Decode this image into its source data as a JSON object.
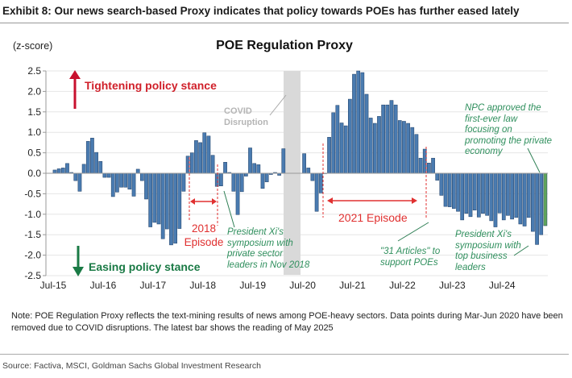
{
  "header": {
    "title": "Exhibit 8: Our news search-based Proxy indicates that policy towards POEs has further eased lately"
  },
  "colors": {
    "bar": "#4a7bb0",
    "bar_latest": "#5fa35b",
    "tightening": "#c8102e",
    "easing": "#1a7a45",
    "covid_band": "#d9d9d9"
  },
  "chart_data": {
    "type": "bar",
    "title": "POE Regulation Proxy",
    "ylabel": "(z-score)",
    "xlabel": "",
    "ylim": [
      -2.5,
      2.5
    ],
    "yticks": [
      "2.5",
      "2.0",
      "1.5",
      "1.0",
      "0.5",
      "0.0",
      "-0.5",
      "-1.0",
      "-1.5",
      "-2.0",
      "-2.5"
    ],
    "ytick_values": [
      2.5,
      2.0,
      1.5,
      1.0,
      0.5,
      0.0,
      -0.5,
      -1.0,
      -1.5,
      -2.0,
      -2.5
    ],
    "xticks": [
      "Jul-15",
      "Jul-16",
      "Jul-17",
      "Jul-18",
      "Jul-19",
      "Jul-20",
      "Jul-21",
      "Jul-22",
      "Jul-23",
      "Jul-24"
    ],
    "x_start": "Jul-2015",
    "x_end": "May-2025",
    "grid": true,
    "series": [
      {
        "name": "POE Regulation Proxy (Jul-15 to Feb-20)",
        "start": "Jul-2015",
        "values": [
          0.08,
          0.11,
          0.13,
          0.24,
          0.02,
          -0.18,
          -0.44,
          0.22,
          0.78,
          0.86,
          0.51,
          0.29,
          -0.1,
          -0.1,
          -0.57,
          -0.46,
          -0.34,
          -0.34,
          -0.39,
          -0.56,
          0.1,
          -0.18,
          -0.63,
          -1.31,
          -1.2,
          -1.24,
          -1.6,
          -1.36,
          -1.75,
          -1.71,
          -1.35,
          -0.44,
          0.42,
          0.5,
          0.8,
          0.75,
          0.99,
          0.91,
          0.44,
          -0.32,
          -0.31,
          0.27,
          0.02,
          -0.44,
          -1.01,
          -0.45,
          -0.07,
          0.62,
          0.24,
          0.21,
          -0.37,
          -0.21,
          -0.03,
          0.02,
          -0.05,
          0.6
        ]
      },
      {
        "name": "POE Regulation Proxy (Jul-20 to May-25)",
        "start": "Jul-2020",
        "values": [
          0.48,
          0.13,
          -0.18,
          -0.93,
          -0.48,
          -0.01,
          0.88,
          1.48,
          1.66,
          1.23,
          1.16,
          1.81,
          2.42,
          2.5,
          2.46,
          1.93,
          1.35,
          1.22,
          1.39,
          1.67,
          1.67,
          1.78,
          1.67,
          1.29,
          1.27,
          1.22,
          1.12,
          0.95,
          0.37,
          0.59,
          0.25,
          0.37,
          -0.17,
          -0.54,
          -0.81,
          -0.82,
          -0.86,
          -0.93,
          -1.14,
          -0.98,
          -1.06,
          -0.9,
          -1.07,
          -0.98,
          -1.03,
          -1.16,
          -1.31,
          -0.97,
          -1.14,
          -1.03,
          -1.12,
          -1.08,
          -1.24,
          -1.29,
          -1.08,
          -1.42,
          -1.74,
          -1.5,
          -1.28
        ]
      }
    ],
    "latest_reading": "May-2025",
    "excluded_period": "Mar-Jun 2020",
    "annotations": {
      "tightening": "Tightening policy stance",
      "easing": "Easing policy stance",
      "covid": [
        "COVID",
        "Disruption"
      ],
      "episode_2018": [
        "2018",
        "Episode"
      ],
      "episode_2021": "2021 Episode",
      "xi_2018": "President Xi's symposium with private sector leaders in Nov 2018",
      "articles_31": "\"31 Articles\" to support POEs",
      "xi_2025": "President Xi's symposium with top business leaders",
      "npc": "NPC approved the first-ever law focusing on promoting the private economy"
    }
  },
  "footer": {
    "note": "Note: POE Regulation Proxy reflects the text-mining results of news among POE-heavy sectors. Data points during Mar-Jun 2020 have been removed due to COVID disruptions. The latest bar shows the reading of May 2025",
    "source": "Source: Factiva, MSCI, Goldman Sachs Global Investment Research"
  }
}
